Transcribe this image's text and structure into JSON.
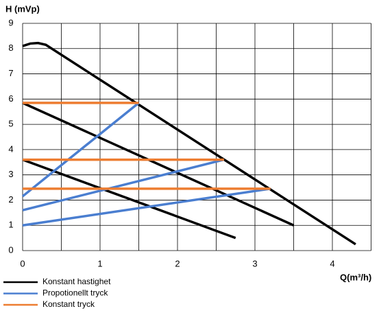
{
  "chart_data": {
    "type": "line",
    "y_label": "H (mVp)",
    "x_label": "Q(m³/h)",
    "xlim": [
      0,
      4.5
    ],
    "xticks": [
      0,
      1,
      2,
      3,
      4
    ],
    "x_minor_ticks": [
      0.5,
      1.5,
      2.5,
      3.5,
      4.5
    ],
    "ylim": [
      0,
      9
    ],
    "yticks": [
      0,
      1,
      2,
      3,
      4,
      5,
      6,
      7,
      8,
      9
    ],
    "grid": true,
    "series": [
      {
        "name": "Konstant hastighet",
        "color": "#000000",
        "segments": [
          {
            "x": [
              0,
              0.1,
              0.2,
              0.3,
              4.3
            ],
            "y": [
              8.1,
              8.2,
              8.22,
              8.15,
              0.25
            ]
          },
          {
            "x": [
              0,
              3.5
            ],
            "y": [
              5.85,
              1.0
            ]
          },
          {
            "x": [
              0,
              2.75
            ],
            "y": [
              3.6,
              0.5
            ]
          }
        ]
      },
      {
        "name": "Propotionellt tryck",
        "color": "#4a7ed0",
        "segments": [
          {
            "x": [
              0,
              1.5
            ],
            "y": [
              2.15,
              5.85
            ]
          },
          {
            "x": [
              0,
              2.6
            ],
            "y": [
              1.6,
              3.6
            ]
          },
          {
            "x": [
              0,
              3.2
            ],
            "y": [
              1.0,
              2.45
            ]
          }
        ]
      },
      {
        "name": "Konstant tryck",
        "color": "#ed7d31",
        "segments": [
          {
            "x": [
              0,
              1.5
            ],
            "y": [
              5.85,
              5.85
            ]
          },
          {
            "x": [
              0,
              2.6
            ],
            "y": [
              3.6,
              3.6
            ]
          },
          {
            "x": [
              0,
              3.2
            ],
            "y": [
              2.45,
              2.45
            ]
          }
        ]
      }
    ]
  }
}
